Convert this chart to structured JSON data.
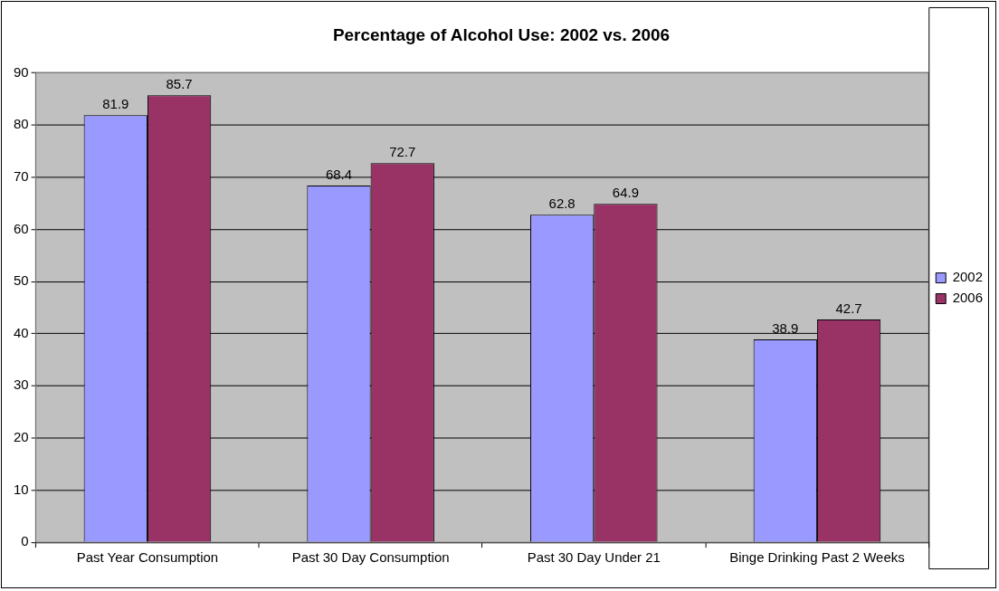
{
  "chart_data": {
    "type": "bar",
    "title": "Percentage of Alcohol Use: 2002 vs. 2006",
    "categories": [
      "Past Year Consumption",
      "Past 30 Day Consumption",
      "Past 30 Day Under 21",
      "Binge Drinking Past 2 Weeks"
    ],
    "series": [
      {
        "name": "2002",
        "color": "#9999ff",
        "values": [
          81.9,
          68.4,
          62.8,
          38.9
        ]
      },
      {
        "name": "2006",
        "color": "#993366",
        "values": [
          85.7,
          72.7,
          64.9,
          42.7
        ]
      }
    ],
    "ylim": [
      0,
      90
    ],
    "yticks": [
      0,
      10,
      20,
      30,
      40,
      50,
      60,
      70,
      80,
      90
    ],
    "grid": "y",
    "legend": "right",
    "data_labels": true
  }
}
